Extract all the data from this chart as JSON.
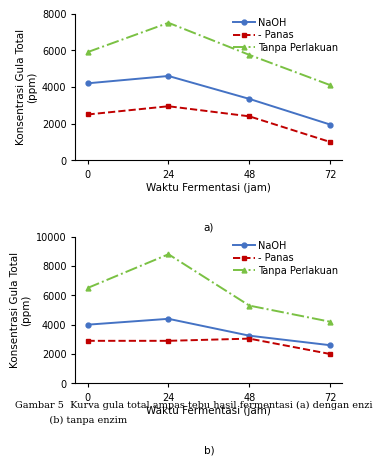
{
  "x": [
    0,
    24,
    48,
    72
  ],
  "chart_a": {
    "NaOH": [
      4200,
      4600,
      3350,
      1950
    ],
    "Panas": [
      2500,
      2950,
      2400,
      1000
    ],
    "Tanpa_Perlakuan": [
      5900,
      7500,
      5750,
      4100
    ]
  },
  "chart_b": {
    "NaOH": [
      4000,
      4400,
      3250,
      2600
    ],
    "Panas": [
      2900,
      2900,
      3050,
      2000
    ],
    "Tanpa_Perlakuan": [
      6500,
      8800,
      5300,
      4200
    ]
  },
  "NaOH_color": "#4472C4",
  "Panas_color": "#C00000",
  "Tanpa_color": "#7AC143",
  "ylabel": "Konsentrasi Gula Total\n(ppm)",
  "xlabel": "Waktu Fermentasi (jam)",
  "label_a": "a)",
  "label_b": "b)",
  "caption_line1": "Gambar 5  Kurva gula total ampas tebu hasil fermentasi (a) dengan enzi",
  "caption_line2": "           (b) tanpa enzim",
  "ylim_a": [
    0,
    8000
  ],
  "ylim_b": [
    0,
    10000
  ],
  "yticks_a": [
    0,
    2000,
    4000,
    6000,
    8000
  ],
  "yticks_b": [
    0,
    2000,
    4000,
    6000,
    8000,
    10000
  ],
  "xticks": [
    0,
    24,
    48,
    72
  ],
  "fontsize_label": 7.5,
  "fontsize_tick": 7,
  "fontsize_legend": 7,
  "fontsize_caption": 7
}
